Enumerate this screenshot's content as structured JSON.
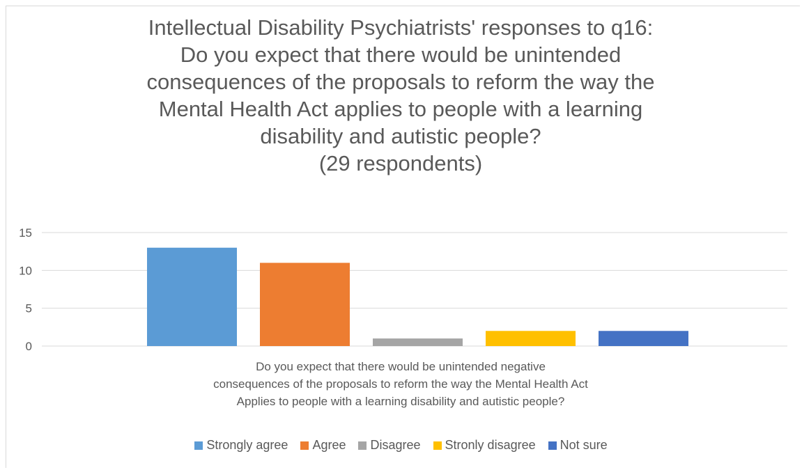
{
  "chart_data": {
    "type": "bar",
    "title_lines": [
      "Intellectual Disability Psychiatrists' responses to q16:",
      "Do you expect that there would be unintended",
      "consequences of the proposals to reform the way the",
      "Mental Health Act applies to people with a learning",
      "disability and autistic people?",
      "(29 respondents)"
    ],
    "xlabel_lines": [
      "Do you expect that there would be unintended negative",
      "consequences of the proposals to reform the way the Mental Health Act",
      "Applies to people with a learning disability and autistic people?"
    ],
    "ylabel": "",
    "ylim": [
      0,
      15
    ],
    "yticks": [
      0,
      5,
      10,
      15
    ],
    "grid": true,
    "legend_position": "bottom",
    "series": [
      {
        "name": "Strongly agree",
        "values": [
          13
        ],
        "color": "#5b9bd5"
      },
      {
        "name": "Agree",
        "values": [
          11
        ],
        "color": "#ed7d31"
      },
      {
        "name": "Disagree",
        "values": [
          1
        ],
        "color": "#a5a5a5"
      },
      {
        "name": "Stronly disagree",
        "values": [
          2
        ],
        "color": "#ffc000"
      },
      {
        "name": "Not sure",
        "values": [
          2
        ],
        "color": "#4472c4"
      }
    ]
  }
}
